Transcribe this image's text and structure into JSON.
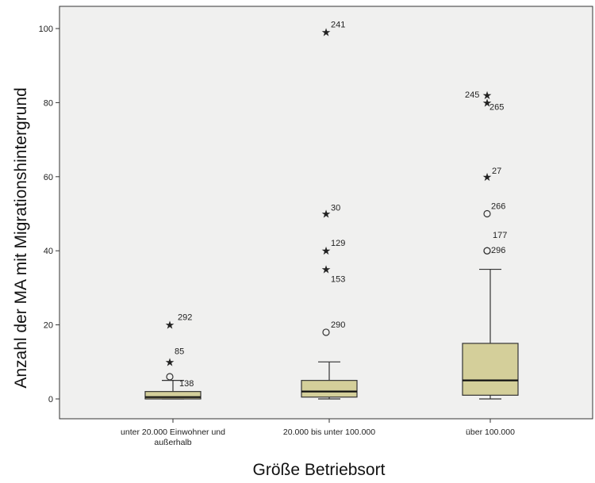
{
  "chart_data": {
    "type": "boxplot",
    "title": "",
    "xlabel": "Größe Betriebsort",
    "ylabel": "Anzahl der MA mit Migrationshintergrund",
    "ylim": [
      -5,
      105
    ],
    "yticks": [
      0,
      20,
      40,
      60,
      80,
      100
    ],
    "grid": false,
    "colors": {
      "plot_bg": "#f0f0ef",
      "box_fill": "#d4cf9a",
      "stroke": "#333333"
    },
    "categories": [
      "unter 20.000 Einwohner und außerhalb",
      "20.000 bis unter 100.000",
      "über 100.000"
    ],
    "category_lines": [
      [
        "unter 20.000 Einwohner und",
        "außerhalb"
      ],
      [
        "20.000 bis unter 100.000"
      ],
      [
        "über 100.000"
      ]
    ],
    "boxes": [
      {
        "whisker_low": 0,
        "q1": 0,
        "median": 0.5,
        "q3": 2,
        "whisker_high": 5
      },
      {
        "whisker_low": 0,
        "q1": 0.5,
        "median": 2,
        "q3": 5,
        "whisker_high": 10
      },
      {
        "whisker_low": 0,
        "q1": 1,
        "median": 5,
        "q3": 15,
        "whisker_high": 35
      }
    ],
    "outliers": [
      {
        "group": 0,
        "value": 20,
        "marker": "star",
        "label": "292"
      },
      {
        "group": 0,
        "value": 10,
        "marker": "star",
        "label": "85"
      },
      {
        "group": 0,
        "value": 6,
        "marker": "circle",
        "label": "138"
      },
      {
        "group": 1,
        "value": 99,
        "marker": "star",
        "label": "241"
      },
      {
        "group": 1,
        "value": 50,
        "marker": "star",
        "label": "30"
      },
      {
        "group": 1,
        "value": 40,
        "marker": "star",
        "label": "129"
      },
      {
        "group": 1,
        "value": 35,
        "marker": "star",
        "label": "153"
      },
      {
        "group": 1,
        "value": 18,
        "marker": "circle",
        "label": "290"
      },
      {
        "group": 2,
        "value": 82,
        "marker": "star",
        "label": "245"
      },
      {
        "group": 2,
        "value": 80,
        "marker": "star",
        "label": "265"
      },
      {
        "group": 2,
        "value": 60,
        "marker": "star",
        "label": "27"
      },
      {
        "group": 2,
        "value": 50,
        "marker": "circle",
        "label": "266"
      },
      {
        "group": 2,
        "value": 40,
        "marker": "circle",
        "label": "177"
      },
      {
        "group": 2,
        "value": 40,
        "marker": "circle",
        "label": "296"
      }
    ]
  }
}
